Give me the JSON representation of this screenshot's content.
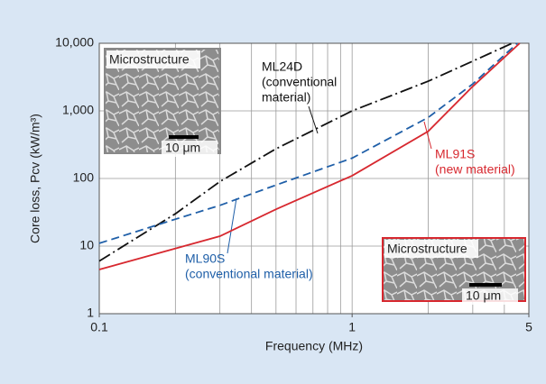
{
  "chart_data": {
    "type": "line",
    "log_x": true,
    "log_y": true,
    "grid": true,
    "xlabel": "Frequency (MHz)",
    "ylabel": "Core loss, Pcv (kW/m³)",
    "xlim": [
      0.1,
      5
    ],
    "xticks": [
      0.1,
      1,
      5
    ],
    "xgrid": [
      0.1,
      0.2,
      0.3,
      0.4,
      0.5,
      0.6,
      0.7,
      0.8,
      0.9,
      1,
      2,
      3,
      4,
      5
    ],
    "ylim": [
      1,
      10000
    ],
    "yticks": [
      1,
      10,
      100,
      {
        "value": 1000,
        "label": "1,000"
      },
      {
        "value": 10000,
        "label": "10,000"
      }
    ],
    "series": [
      {
        "name": "ML24D",
        "note": [
          "(conventional",
          "material)"
        ],
        "color": "#111111",
        "dash": "14 4 2 4",
        "x": [
          0.1,
          0.2,
          0.3,
          0.5,
          1,
          2,
          4.3
        ],
        "values": [
          6,
          30,
          90,
          275,
          1000,
          2750,
          10000
        ]
      },
      {
        "name": "ML90S",
        "note": [
          "(conventional material)"
        ],
        "color": "#1f5fa8",
        "dash": "9 5",
        "x": [
          0.1,
          0.2,
          0.3,
          0.5,
          1,
          2,
          3,
          4.5
        ],
        "values": [
          11,
          25,
          40,
          80,
          200,
          800,
          2500,
          10000
        ]
      },
      {
        "name": "ML91S",
        "note": [
          "(new material)"
        ],
        "color": "#d7282f",
        "dash": "none",
        "x": [
          0.1,
          0.3,
          0.5,
          1,
          2,
          3,
          4.6
        ],
        "values": [
          4.5,
          14,
          35,
          110,
          500,
          2300,
          10000
        ]
      }
    ],
    "insets": [
      {
        "label": "Microstructure",
        "scale": "10 μm",
        "border": "#888888"
      },
      {
        "label": "Microstructure",
        "scale": "10 μm",
        "border": "#d7282f"
      }
    ]
  }
}
